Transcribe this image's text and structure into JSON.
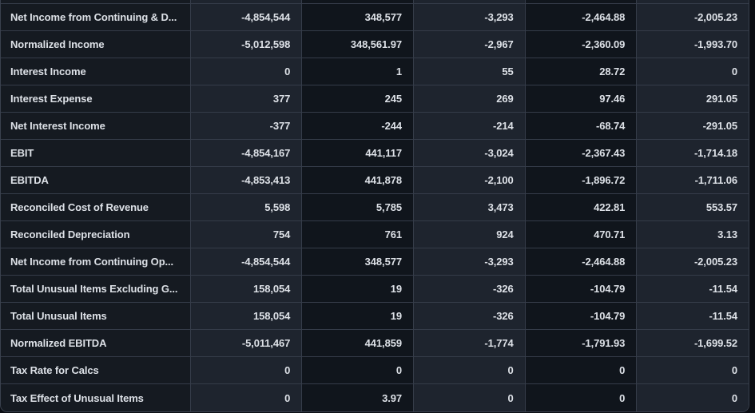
{
  "app": {
    "view_name": "financials-income-statement-table"
  },
  "colors": {
    "page_bg": "#0a0d13",
    "card_border": "#3a414e",
    "grid_line": "#353c49",
    "label_column_bg": "#151a21",
    "value_column_light_bg": "#1e242e",
    "value_column_dark_bg": "#10151c",
    "text": "#dde1e7"
  },
  "table": {
    "value_column_count": 5,
    "rows": [
      {
        "label": "Net Income from Continuing & D...",
        "values": [
          "-4,854,544",
          "348,577",
          "-3,293",
          "-2,464.88",
          "-2,005.23"
        ]
      },
      {
        "label": "Normalized Income",
        "values": [
          "-5,012,598",
          "348,561.97",
          "-2,967",
          "-2,360.09",
          "-1,993.70"
        ]
      },
      {
        "label": "Interest Income",
        "values": [
          "0",
          "1",
          "55",
          "28.72",
          "0"
        ]
      },
      {
        "label": "Interest Expense",
        "values": [
          "377",
          "245",
          "269",
          "97.46",
          "291.05"
        ]
      },
      {
        "label": "Net Interest Income",
        "values": [
          "-377",
          "-244",
          "-214",
          "-68.74",
          "-291.05"
        ]
      },
      {
        "label": "EBIT",
        "values": [
          "-4,854,167",
          "441,117",
          "-3,024",
          "-2,367.43",
          "-1,714.18"
        ]
      },
      {
        "label": "EBITDA",
        "values": [
          "-4,853,413",
          "441,878",
          "-2,100",
          "-1,896.72",
          "-1,711.06"
        ]
      },
      {
        "label": "Reconciled Cost of Revenue",
        "values": [
          "5,598",
          "5,785",
          "3,473",
          "422.81",
          "553.57"
        ]
      },
      {
        "label": "Reconciled Depreciation",
        "values": [
          "754",
          "761",
          "924",
          "470.71",
          "3.13"
        ]
      },
      {
        "label": "Net Income from Continuing Op...",
        "values": [
          "-4,854,544",
          "348,577",
          "-3,293",
          "-2,464.88",
          "-2,005.23"
        ]
      },
      {
        "label": "Total Unusual Items Excluding G...",
        "values": [
          "158,054",
          "19",
          "-326",
          "-104.79",
          "-11.54"
        ]
      },
      {
        "label": "Total Unusual Items",
        "values": [
          "158,054",
          "19",
          "-326",
          "-104.79",
          "-11.54"
        ]
      },
      {
        "label": "Normalized EBITDA",
        "values": [
          "-5,011,467",
          "441,859",
          "-1,774",
          "-1,791.93",
          "-1,699.52"
        ]
      },
      {
        "label": "Tax Rate for Calcs",
        "values": [
          "0",
          "0",
          "0",
          "0",
          "0"
        ]
      },
      {
        "label": "Tax Effect of Unusual Items",
        "values": [
          "0",
          "3.97",
          "0",
          "0",
          "0"
        ]
      }
    ]
  }
}
